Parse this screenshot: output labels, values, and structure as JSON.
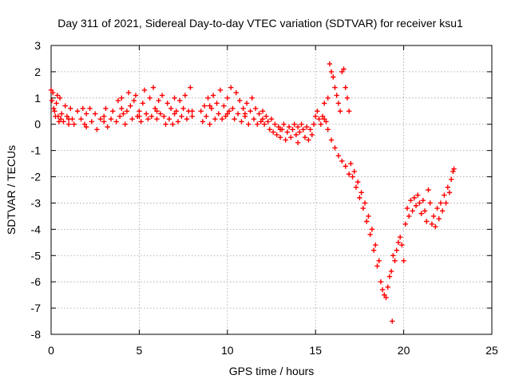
{
  "chart_data": {
    "type": "scatter",
    "title": "Day 311 of 2021, Sidereal Day-to-day VTEC variation (SDTVAR) for receiver ksu1",
    "xlabel": "GPS time / hours",
    "ylabel": "SDTVAR / TECUs",
    "xlim": [
      0,
      25
    ],
    "ylim": [
      -8,
      3
    ],
    "xticks": [
      0,
      5,
      10,
      15,
      20,
      25
    ],
    "yticks": [
      -8,
      -7,
      -6,
      -5,
      -4,
      -3,
      -2,
      -1,
      0,
      1,
      2,
      3
    ],
    "grid": true,
    "marker": "+",
    "color": "#ff0000",
    "series": [
      {
        "points": [
          [
            0.0,
            1.3
          ],
          [
            0.05,
            0.9
          ],
          [
            0.1,
            1.2
          ],
          [
            0.15,
            0.6
          ],
          [
            0.2,
            0.5
          ],
          [
            0.25,
            0.3
          ],
          [
            0.3,
            0.8
          ],
          [
            0.35,
            1.1
          ],
          [
            0.4,
            0.3
          ],
          [
            0.45,
            0.1
          ],
          [
            0.5,
            1.0
          ],
          [
            0.55,
            0.2
          ],
          [
            0.6,
            0.4
          ],
          [
            0.7,
            0.1
          ],
          [
            0.8,
            0.7
          ],
          [
            0.9,
            0.3
          ],
          [
            1.0,
            0.0
          ],
          [
            1.1,
            0.6
          ],
          [
            1.2,
            0.2
          ],
          [
            1.3,
            0.0
          ],
          [
            1.5,
            0.5
          ],
          [
            1.7,
            0.2
          ],
          [
            1.8,
            0.6
          ],
          [
            1.9,
            0.0
          ],
          [
            2.0,
            -0.1
          ],
          [
            2.2,
            0.6
          ],
          [
            2.3,
            0.1
          ],
          [
            2.5,
            0.4
          ],
          [
            2.6,
            -0.2
          ],
          [
            2.8,
            0.2
          ],
          [
            3.0,
            0.1
          ],
          [
            3.1,
            0.6
          ],
          [
            3.2,
            -0.1
          ],
          [
            3.4,
            0.2
          ],
          [
            3.5,
            0.5
          ],
          [
            3.7,
            0.1
          ],
          [
            3.8,
            0.9
          ],
          [
            3.9,
            0.3
          ],
          [
            4.0,
            1.0
          ],
          [
            4.1,
            0.4
          ],
          [
            4.2,
            0.0
          ],
          [
            4.3,
            0.5
          ],
          [
            4.4,
            1.2
          ],
          [
            4.5,
            0.7
          ],
          [
            4.6,
            0.2
          ],
          [
            4.7,
            0.9
          ],
          [
            4.8,
            1.1
          ],
          [
            4.9,
            0.3
          ],
          [
            5.0,
            0.5
          ],
          [
            5.1,
            0.1
          ],
          [
            5.2,
            0.8
          ],
          [
            5.3,
            1.3
          ],
          [
            5.4,
            0.4
          ],
          [
            5.5,
            0.2
          ],
          [
            5.6,
            1.0
          ],
          [
            5.7,
            0.3
          ],
          [
            5.8,
            1.4
          ],
          [
            5.9,
            0.6
          ],
          [
            6.0,
            0.2
          ],
          [
            6.1,
            0.9
          ],
          [
            6.2,
            0.4
          ],
          [
            6.3,
            1.1
          ],
          [
            6.4,
            0.3
          ],
          [
            6.5,
            0.0
          ],
          [
            6.6,
            0.8
          ],
          [
            6.7,
            0.2
          ],
          [
            6.8,
            0.6
          ],
          [
            6.9,
            0.0
          ],
          [
            7.0,
            1.0
          ],
          [
            7.1,
            0.5
          ],
          [
            7.2,
            0.1
          ],
          [
            7.3,
            0.9
          ],
          [
            7.4,
            0.3
          ],
          [
            7.5,
            0.6
          ],
          [
            7.6,
            1.1
          ],
          [
            7.7,
            0.2
          ],
          [
            7.8,
            0.5
          ],
          [
            7.9,
            1.4
          ],
          [
            8.0,
            0.3
          ],
          [
            8.5,
            0.5
          ],
          [
            8.6,
            0.1
          ],
          [
            8.7,
            0.7
          ],
          [
            8.8,
            0.3
          ],
          [
            8.9,
            1.0
          ],
          [
            9.0,
            0.0
          ],
          [
            9.1,
            0.6
          ],
          [
            9.2,
            1.1
          ],
          [
            9.3,
            0.2
          ],
          [
            9.4,
            0.8
          ],
          [
            9.5,
            0.4
          ],
          [
            9.6,
            1.3
          ],
          [
            9.7,
            0.2
          ],
          [
            9.8,
            0.7
          ],
          [
            9.9,
            0.3
          ],
          [
            10.0,
            1.0
          ],
          [
            10.1,
            0.5
          ],
          [
            10.2,
            1.4
          ],
          [
            10.3,
            0.6
          ],
          [
            10.4,
            0.2
          ],
          [
            10.5,
            1.2
          ],
          [
            10.6,
            0.4
          ],
          [
            10.7,
            0.9
          ],
          [
            10.8,
            0.1
          ],
          [
            10.9,
            0.6
          ],
          [
            11.0,
            0.3
          ],
          [
            11.1,
            0.8
          ],
          [
            11.2,
            0.0
          ],
          [
            11.3,
            0.5
          ],
          [
            11.4,
            1.0
          ],
          [
            11.5,
            0.2
          ],
          [
            11.6,
            0.6
          ],
          [
            11.7,
            0.0
          ],
          [
            11.8,
            0.4
          ],
          [
            11.9,
            0.1
          ],
          [
            12.0,
            0.5
          ],
          [
            12.1,
            0.0
          ],
          [
            12.2,
            0.3
          ],
          [
            12.3,
            0.1
          ],
          [
            12.4,
            -0.2
          ],
          [
            12.5,
            0.2
          ],
          [
            12.6,
            -0.3
          ],
          [
            12.7,
            0.0
          ],
          [
            12.8,
            -0.4
          ],
          [
            12.9,
            -0.1
          ],
          [
            13.0,
            -0.5
          ],
          [
            13.1,
            -0.2
          ],
          [
            13.2,
            0.0
          ],
          [
            13.3,
            -0.6
          ],
          [
            13.4,
            -0.3
          ],
          [
            13.5,
            -0.1
          ],
          [
            13.6,
            -0.5
          ],
          [
            13.7,
            -0.2
          ],
          [
            13.8,
            0.0
          ],
          [
            13.9,
            -0.4
          ],
          [
            14.0,
            -0.7
          ],
          [
            14.1,
            -0.3
          ],
          [
            14.2,
            0.0
          ],
          [
            14.3,
            -0.2
          ],
          [
            14.4,
            -0.5
          ],
          [
            14.5,
            -0.1
          ],
          [
            14.6,
            -0.6
          ],
          [
            14.7,
            -0.2
          ],
          [
            14.8,
            -0.4
          ],
          [
            14.9,
            0.0
          ],
          [
            15.0,
            0.3
          ],
          [
            15.1,
            0.5
          ],
          [
            15.2,
            0.2
          ],
          [
            15.3,
            0.0
          ],
          [
            15.4,
            0.3
          ],
          [
            15.5,
            0.8
          ],
          [
            15.6,
            0.1
          ],
          [
            15.7,
            1.0
          ],
          [
            15.8,
            2.3
          ],
          [
            15.9,
            2.0
          ],
          [
            16.0,
            1.8
          ],
          [
            16.1,
            1.4
          ],
          [
            16.2,
            1.1
          ],
          [
            16.3,
            0.8
          ],
          [
            16.4,
            0.5
          ],
          [
            16.5,
            2.0
          ],
          [
            16.6,
            2.1
          ],
          [
            16.7,
            1.4
          ],
          [
            16.8,
            1.0
          ],
          [
            16.9,
            0.5
          ],
          [
            15.5,
            0.2
          ],
          [
            15.7,
            -0.2
          ],
          [
            15.9,
            -0.6
          ],
          [
            16.1,
            -0.9
          ],
          [
            16.3,
            -1.2
          ],
          [
            16.5,
            -1.4
          ],
          [
            16.7,
            -1.6
          ],
          [
            16.9,
            -1.9
          ],
          [
            17.0,
            -1.5
          ],
          [
            17.1,
            -2.0
          ],
          [
            17.2,
            -1.8
          ],
          [
            17.3,
            -2.4
          ],
          [
            17.4,
            -2.2
          ],
          [
            17.5,
            -2.8
          ],
          [
            17.6,
            -2.6
          ],
          [
            17.7,
            -3.2
          ],
          [
            17.8,
            -3.0
          ],
          [
            17.9,
            -3.7
          ],
          [
            18.0,
            -3.5
          ],
          [
            18.1,
            -4.2
          ],
          [
            18.2,
            -4.0
          ],
          [
            18.3,
            -4.8
          ],
          [
            18.4,
            -4.6
          ],
          [
            18.5,
            -5.4
          ],
          [
            18.6,
            -5.2
          ],
          [
            18.7,
            -6.0
          ],
          [
            18.8,
            -6.3
          ],
          [
            18.9,
            -6.5
          ],
          [
            19.0,
            -6.6
          ],
          [
            19.1,
            -6.2
          ],
          [
            19.2,
            -5.8
          ],
          [
            19.3,
            -5.6
          ],
          [
            19.4,
            -5.0
          ],
          [
            19.35,
            -7.5
          ],
          [
            19.5,
            -5.2
          ],
          [
            19.6,
            -4.8
          ],
          [
            19.7,
            -4.5
          ],
          [
            19.8,
            -4.3
          ],
          [
            19.9,
            -4.6
          ],
          [
            20.0,
            -5.2
          ],
          [
            20.1,
            -3.8
          ],
          [
            20.2,
            -3.2
          ],
          [
            20.3,
            -3.5
          ],
          [
            20.4,
            -2.9
          ],
          [
            20.5,
            -3.3
          ],
          [
            20.6,
            -2.8
          ],
          [
            20.7,
            -3.1
          ],
          [
            20.8,
            -2.7
          ],
          [
            20.9,
            -3.0
          ],
          [
            21.0,
            -3.4
          ],
          [
            21.1,
            -2.9
          ],
          [
            21.2,
            -3.3
          ],
          [
            21.3,
            -3.7
          ],
          [
            21.4,
            -2.5
          ],
          [
            21.5,
            -3.0
          ],
          [
            21.6,
            -3.8
          ],
          [
            21.7,
            -3.5
          ],
          [
            21.8,
            -3.9
          ],
          [
            21.9,
            -3.2
          ],
          [
            22.0,
            -3.6
          ],
          [
            22.1,
            -3.0
          ],
          [
            22.2,
            -3.3
          ],
          [
            22.3,
            -2.7
          ],
          [
            22.4,
            -3.0
          ],
          [
            22.5,
            -2.4
          ],
          [
            22.6,
            -2.6
          ],
          [
            22.7,
            -2.1
          ],
          [
            22.8,
            -1.8
          ],
          [
            22.85,
            -1.7
          ],
          [
            1.0,
            0.2
          ],
          [
            2.0,
            0.4
          ],
          [
            3.0,
            0.3
          ],
          [
            4.0,
            0.6
          ],
          [
            5.0,
            0.3
          ],
          [
            6.0,
            0.5
          ],
          [
            7.0,
            0.4
          ],
          [
            8.0,
            0.5
          ],
          [
            9.0,
            0.7
          ],
          [
            10.0,
            0.4
          ],
          [
            11.0,
            0.4
          ],
          [
            12.0,
            0.2
          ],
          [
            13.0,
            -0.2
          ],
          [
            14.0,
            -0.1
          ]
        ]
      }
    ]
  }
}
